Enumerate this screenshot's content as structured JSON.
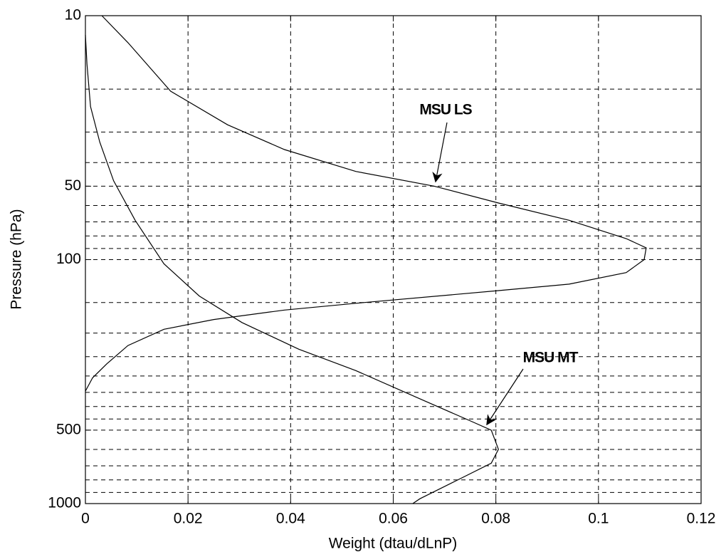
{
  "chart_data": {
    "type": "line",
    "xlabel": "Weight (dtau/dLnP)",
    "ylabel": "Pressure (hPa)",
    "xlim": [
      0,
      0.12
    ],
    "xticks": [
      0,
      0.02,
      0.04,
      0.06,
      0.08,
      0.1,
      0.12
    ],
    "ylim": [
      1000,
      10
    ],
    "yscale": "log",
    "yticks": [
      10,
      50,
      100,
      500,
      1000
    ],
    "ygrid": [
      20,
      30,
      40,
      50,
      60,
      70,
      80,
      90,
      100,
      150,
      200,
      250,
      300,
      350,
      400,
      450,
      500,
      600,
      700,
      800,
      900
    ],
    "grid": true,
    "series": [
      {
        "color": "#000000",
        "x": [
          0.0032,
          0.0083,
          0.0166,
          0.0277,
          0.0388,
          0.0527,
          0.068,
          0.0805,
          0.0943,
          0.1054,
          0.1093,
          0.1089,
          0.1054,
          0.0943,
          0.0805,
          0.0527,
          0.0388,
          0.025,
          0.0153,
          0.0083,
          0.0042,
          0.0014,
          0
        ],
        "y": [
          10,
          12.9,
          20.4,
          28,
          35.4,
          43.5,
          50,
          58.6,
          69,
          82,
          89.5,
          100,
          113,
          126,
          134,
          151,
          161,
          176,
          193,
          225,
          267,
          305,
          346
        ]
      },
      {
        "color": "#000000",
        "x": [
          0,
          0.0003,
          0.001,
          0.0028,
          0.0055,
          0.0097,
          0.0153,
          0.0222,
          0.0305,
          0.0416,
          0.0527,
          0.0652,
          0.0749,
          0.0791,
          0.0805,
          0.0791,
          0.0721,
          0.0652,
          0.0638
        ],
        "y": [
          12,
          15.8,
          23.6,
          33,
          47.5,
          69,
          104,
          141,
          181,
          233,
          285,
          372,
          457,
          500,
          599,
          683,
          809,
          955,
          1000
        ]
      }
    ],
    "annotations": [
      {
        "text": "MSU LS"
      },
      {
        "text": "MSU MT"
      }
    ]
  }
}
